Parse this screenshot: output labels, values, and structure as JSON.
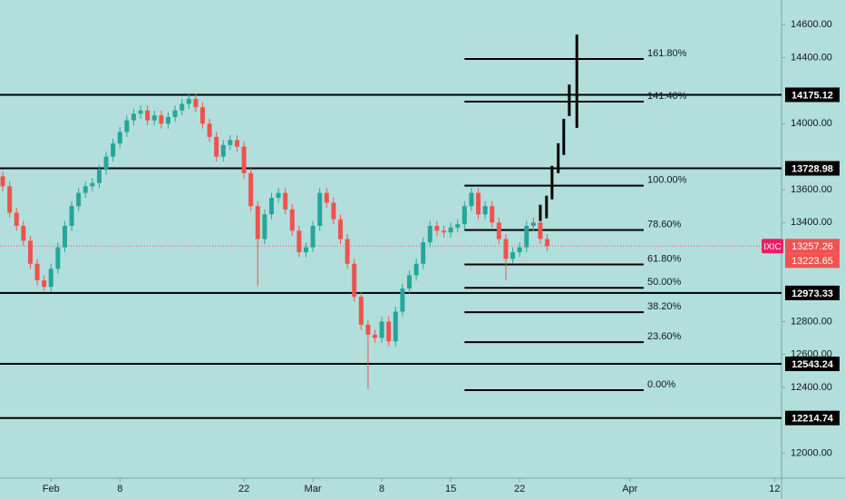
{
  "chart_data": {
    "type": "candlestick",
    "symbol": "IXIC",
    "up_color": "#26a69a",
    "down_color": "#ef5350",
    "xlim": [
      -0.4,
      113
    ],
    "xticks": [
      {
        "value": 7,
        "label": "Feb"
      },
      {
        "value": 17,
        "label": "8"
      },
      {
        "value": 35,
        "label": "22"
      },
      {
        "value": 45,
        "label": "Mar"
      },
      {
        "value": 55,
        "label": "8"
      },
      {
        "value": 65,
        "label": "15"
      },
      {
        "value": 75,
        "label": "22"
      },
      {
        "value": 91,
        "label": "Apr"
      },
      {
        "value": 112,
        "label": "12"
      }
    ],
    "ylim": [
      11850,
      14750
    ],
    "yticks": [
      {
        "value": 12000,
        "label": "12000.00"
      },
      {
        "value": 12400,
        "label": "12400.00"
      },
      {
        "value": 12600,
        "label": "12600.00"
      },
      {
        "value": 12800,
        "label": "12800.00"
      },
      {
        "value": 13400,
        "label": "13400.00"
      },
      {
        "value": 13600,
        "label": "13600.00"
      },
      {
        "value": 14000,
        "label": "14000.00"
      },
      {
        "value": 14400,
        "label": "14400.00"
      },
      {
        "value": 14600,
        "label": "14600.00"
      }
    ],
    "open": [
      13680,
      13620,
      13460,
      13380,
      13290,
      13150,
      13050,
      13010,
      13120,
      13250,
      13380,
      13500,
      13580,
      13620,
      13640,
      13720,
      13800,
      13880,
      13950,
      14020,
      14060,
      14080,
      14020,
      14050,
      14000,
      14040,
      14080,
      14120,
      14150,
      14100,
      14000,
      13920,
      13800,
      13870,
      13900,
      13860,
      13700,
      13500,
      13300,
      13450,
      13550,
      13580,
      13480,
      13350,
      13220,
      13250,
      13380,
      13580,
      13520,
      13420,
      13300,
      13150,
      12950,
      12780,
      12720,
      12700,
      12800,
      12680,
      12860,
      13000,
      13080,
      13150,
      13280,
      13380,
      13350,
      13340,
      13370,
      13390,
      13500,
      13580,
      13450,
      13500,
      13400,
      13300,
      13180,
      13220,
      13250,
      13380,
      13400,
      13300
    ],
    "high": [
      13710,
      13650,
      13490,
      13410,
      13320,
      13180,
      13080,
      13150,
      13280,
      13410,
      13530,
      13610,
      13650,
      13670,
      13750,
      13830,
      13910,
      13980,
      14050,
      14090,
      14110,
      14110,
      14080,
      14080,
      14070,
      14110,
      14150,
      14183,
      14180,
      14130,
      14030,
      13950,
      13900,
      13930,
      13930,
      13890,
      13730,
      13530,
      13480,
      13580,
      13610,
      13610,
      13510,
      13380,
      13280,
      13410,
      13610,
      13610,
      13550,
      13450,
      13330,
      13180,
      12980,
      12810,
      12750,
      12830,
      12830,
      12890,
      13030,
      13110,
      13180,
      13310,
      13410,
      13410,
      13380,
      13400,
      13420,
      13530,
      13610,
      13610,
      13530,
      13530,
      13430,
      13330,
      13250,
      13280,
      13410,
      13430,
      13430,
      13330
    ],
    "low": [
      13590,
      13430,
      13350,
      13260,
      13120,
      13020,
      12985,
      12980,
      13090,
      13220,
      13350,
      13470,
      13550,
      13590,
      13610,
      13690,
      13770,
      13850,
      13920,
      13990,
      14030,
      13990,
      13990,
      13970,
      13970,
      14010,
      14050,
      14090,
      14070,
      13970,
      13890,
      13770,
      13770,
      13840,
      13830,
      13670,
      13470,
      13015,
      13270,
      13420,
      13520,
      13450,
      13320,
      13190,
      13190,
      13220,
      13350,
      13490,
      13390,
      13270,
      13120,
      12920,
      12750,
      12390,
      12670,
      12670,
      12650,
      12650,
      12830,
      12970,
      13050,
      13120,
      13250,
      13320,
      13310,
      13310,
      13340,
      13360,
      13470,
      13420,
      13420,
      13370,
      13270,
      13050,
      13150,
      13190,
      13220,
      13350,
      13270,
      13227
    ],
    "close": [
      13620,
      13460,
      13380,
      13290,
      13150,
      13050,
      13010,
      13120,
      13250,
      13380,
      13500,
      13580,
      13620,
      13640,
      13720,
      13800,
      13880,
      13950,
      14020,
      14060,
      14080,
      14020,
      14050,
      14000,
      14040,
      14080,
      14120,
      14150,
      14100,
      14000,
      13920,
      13800,
      13870,
      13900,
      13860,
      13700,
      13500,
      13300,
      13450,
      13550,
      13580,
      13480,
      13350,
      13220,
      13250,
      13380,
      13580,
      13520,
      13420,
      13300,
      13150,
      12950,
      12780,
      12720,
      12700,
      12800,
      12680,
      12860,
      13000,
      13080,
      13150,
      13280,
      13380,
      13350,
      13340,
      13370,
      13390,
      13500,
      13580,
      13450,
      13500,
      13400,
      13300,
      13180,
      13220,
      13250,
      13380,
      13400,
      13300,
      13257
    ],
    "levels": [
      14175.12,
      13728.98,
      12973.33,
      12543.24,
      12214.74
    ],
    "last_price": 13257.26,
    "second_price": 13223.65,
    "fib_levels": [
      {
        "label": "161.80%",
        "value": 14392
      },
      {
        "label": "141.40%",
        "value": 14134
      },
      {
        "label": "100.00%",
        "value": 13624
      },
      {
        "label": "78.60%",
        "value": 13355
      },
      {
        "label": "61.80%",
        "value": 13146
      },
      {
        "label": "50.00%",
        "value": 13004
      },
      {
        "label": "38.20%",
        "value": 12856
      },
      {
        "label": "23.60%",
        "value": 12675
      },
      {
        "label": "0.00%",
        "value": 12384
      }
    ],
    "fib_x": [
      67,
      93
    ],
    "projection": {
      "x": [
        78,
        78.9,
        79.7,
        80.6,
        81.4,
        82.2,
        83.3
      ],
      "high": [
        13508,
        13563,
        13744,
        13881,
        14029,
        14237,
        14540
      ],
      "low": [
        13410,
        13426,
        13541,
        13700,
        13810,
        14046,
        13975
      ]
    }
  }
}
